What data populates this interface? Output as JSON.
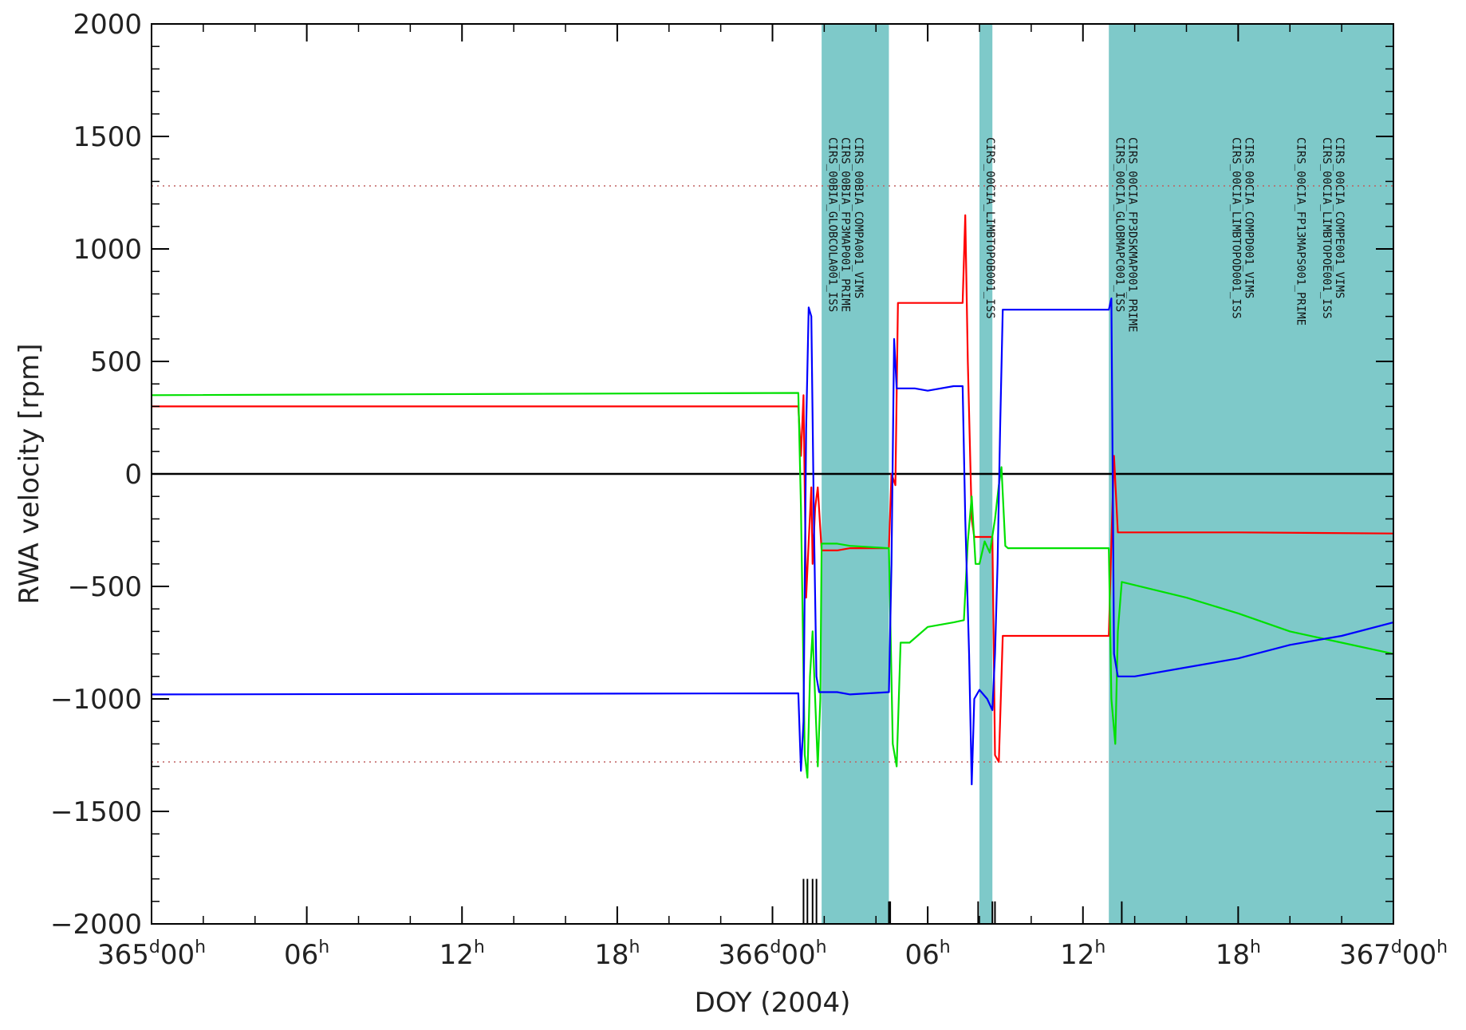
{
  "chart_data": {
    "type": "line",
    "title": "",
    "xlabel": "DOY (2004)",
    "ylabel": "RWA velocity [rpm]",
    "xlim": [
      0,
      48
    ],
    "ylim": [
      -2000,
      2000
    ],
    "x_unit": "hours since 365d00h",
    "y_ticks": [
      2000,
      1500,
      1000,
      500,
      0,
      -500,
      -1000,
      -1500,
      -2000
    ],
    "x_ticks": [
      {
        "x": 0,
        "label": "365",
        "sup1": "d",
        "mid": "00",
        "sup2": "h"
      },
      {
        "x": 6,
        "label": "",
        "sup1": "",
        "mid": "06",
        "sup2": "h"
      },
      {
        "x": 12,
        "label": "",
        "sup1": "",
        "mid": "12",
        "sup2": "h"
      },
      {
        "x": 18,
        "label": "",
        "sup1": "",
        "mid": "18",
        "sup2": "h"
      },
      {
        "x": 24,
        "label": "366",
        "sup1": "d",
        "mid": "00",
        "sup2": "h"
      },
      {
        "x": 30,
        "label": "",
        "sup1": "",
        "mid": "06",
        "sup2": "h"
      },
      {
        "x": 36,
        "label": "",
        "sup1": "",
        "mid": "12",
        "sup2": "h"
      },
      {
        "x": 42,
        "label": "",
        "sup1": "",
        "mid": "18",
        "sup2": "h"
      },
      {
        "x": 48,
        "label": "367",
        "sup1": "d",
        "mid": "00",
        "sup2": "h"
      }
    ],
    "limit_lines": [
      1280,
      -1280
    ],
    "zero_line": 0,
    "shaded_bands": [
      {
        "x0": 25.9,
        "x1": 28.5
      },
      {
        "x0": 32.0,
        "x1": 32.5
      },
      {
        "x0": 37.0,
        "x1": 48.0
      }
    ],
    "band_labels": [
      {
        "x": 26.0,
        "text": "CIRS_00BIA_GLOBCOLA001_ISS"
      },
      {
        "x": 26.5,
        "text": "CIRS_00BIA_FP3MAP001_PRIME"
      },
      {
        "x": 27.0,
        "text": "CIRS_00BIA_COMPA001_VIMS"
      },
      {
        "x": 32.1,
        "text": "CIRS_00CIA_LIMBTOPOB001_ISS"
      },
      {
        "x": 37.1,
        "text": "CIRS_00CIA_GLOBMAPC001_ISS"
      },
      {
        "x": 37.6,
        "text": "CIRS_00CIA_FP3DSKMAP001_PRIME"
      },
      {
        "x": 41.6,
        "text": "CIRS_00CIA_LIMBTOPOD001_ISS"
      },
      {
        "x": 42.1,
        "text": "CIRS_00CIA_COMPD001_VIMS"
      },
      {
        "x": 44.1,
        "text": "CIRS_00CIA_FP13MAPS001_PRIME"
      },
      {
        "x": 45.1,
        "text": "CIRS_00CIA_LIMBTOPOE001_ISS"
      },
      {
        "x": 45.6,
        "text": "CIRS_00CIA_COMPE001_VIMS"
      }
    ],
    "event_markers": [
      {
        "x": 25.2,
        "y0": -2000,
        "y1": -1800
      },
      {
        "x": 25.35,
        "y0": -2000,
        "y1": -1800
      },
      {
        "x": 25.55,
        "y0": -2000,
        "y1": -1800
      },
      {
        "x": 25.7,
        "y0": -2000,
        "y1": -1800
      },
      {
        "x": 28.5,
        "y0": -2000,
        "y1": -1900
      },
      {
        "x": 28.55,
        "y0": -2000,
        "y1": -1900
      },
      {
        "x": 31.95,
        "y0": -2000,
        "y1": -1900
      },
      {
        "x": 32.5,
        "y0": -2000,
        "y1": -1900
      },
      {
        "x": 32.6,
        "y0": -2000,
        "y1": -1900
      },
      {
        "x": 37.5,
        "y0": -2000,
        "y1": -1900
      }
    ],
    "series": [
      {
        "color": "#ff0000",
        "points": [
          [
            0,
            300
          ],
          [
            25,
            300
          ],
          [
            25.1,
            80
          ],
          [
            25.2,
            350
          ],
          [
            25.3,
            -550
          ],
          [
            25.4,
            -300
          ],
          [
            25.5,
            -60
          ],
          [
            25.55,
            -400
          ],
          [
            25.65,
            -150
          ],
          [
            25.75,
            -60
          ],
          [
            25.9,
            -340
          ],
          [
            26.5,
            -340
          ],
          [
            27.0,
            -330
          ],
          [
            28.5,
            -330
          ],
          [
            28.6,
            0
          ],
          [
            28.75,
            -50
          ],
          [
            28.85,
            760
          ],
          [
            30.0,
            760
          ],
          [
            31.1,
            760
          ],
          [
            31.35,
            760
          ],
          [
            31.45,
            1150
          ],
          [
            31.55,
            500
          ],
          [
            31.7,
            -200
          ],
          [
            31.8,
            -280
          ],
          [
            32.5,
            -280
          ],
          [
            32.6,
            -1250
          ],
          [
            32.75,
            -1280
          ],
          [
            32.9,
            -720
          ],
          [
            37.0,
            -720
          ],
          [
            37.1,
            -300
          ],
          [
            37.2,
            80
          ],
          [
            37.35,
            -260
          ],
          [
            38.0,
            -260
          ],
          [
            40.0,
            -260
          ],
          [
            42.0,
            -260
          ],
          [
            48.0,
            -265
          ]
        ]
      },
      {
        "color": "#00e000",
        "points": [
          [
            0,
            350
          ],
          [
            25,
            360
          ],
          [
            25.1,
            -150
          ],
          [
            25.25,
            -1250
          ],
          [
            25.35,
            -1350
          ],
          [
            25.45,
            -900
          ],
          [
            25.55,
            -700
          ],
          [
            25.65,
            -1000
          ],
          [
            25.75,
            -1300
          ],
          [
            25.85,
            -1000
          ],
          [
            25.9,
            -310
          ],
          [
            26.5,
            -310
          ],
          [
            27.0,
            -320
          ],
          [
            28.5,
            -330
          ],
          [
            28.65,
            -1200
          ],
          [
            28.8,
            -1300
          ],
          [
            28.95,
            -750
          ],
          [
            29.1,
            -750
          ],
          [
            29.3,
            -750
          ],
          [
            30.0,
            -680
          ],
          [
            31.0,
            -660
          ],
          [
            31.4,
            -650
          ],
          [
            31.55,
            -300
          ],
          [
            31.7,
            -100
          ],
          [
            31.85,
            -400
          ],
          [
            32.0,
            -400
          ],
          [
            32.2,
            -300
          ],
          [
            32.4,
            -350
          ],
          [
            32.6,
            -200
          ],
          [
            32.75,
            -50
          ],
          [
            32.85,
            30
          ],
          [
            33.0,
            -320
          ],
          [
            33.1,
            -330
          ],
          [
            37.0,
            -330
          ],
          [
            37.1,
            -1000
          ],
          [
            37.25,
            -1200
          ],
          [
            37.35,
            -700
          ],
          [
            37.5,
            -480
          ],
          [
            40.0,
            -550
          ],
          [
            42.0,
            -620
          ],
          [
            44.0,
            -700
          ],
          [
            46.0,
            -750
          ],
          [
            48.0,
            -800
          ]
        ]
      },
      {
        "color": "#0000ff",
        "points": [
          [
            0,
            -980
          ],
          [
            25,
            -975
          ],
          [
            25.1,
            -1320
          ],
          [
            25.2,
            -1100
          ],
          [
            25.3,
            200
          ],
          [
            25.4,
            740
          ],
          [
            25.5,
            700
          ],
          [
            25.6,
            -200
          ],
          [
            25.7,
            -900
          ],
          [
            25.8,
            -970
          ],
          [
            26.5,
            -970
          ],
          [
            27.0,
            -980
          ],
          [
            28.5,
            -970
          ],
          [
            28.6,
            -400
          ],
          [
            28.7,
            600
          ],
          [
            28.8,
            380
          ],
          [
            29.5,
            380
          ],
          [
            30.0,
            370
          ],
          [
            31.0,
            390
          ],
          [
            31.35,
            390
          ],
          [
            31.45,
            -200
          ],
          [
            31.6,
            -800
          ],
          [
            31.7,
            -1380
          ],
          [
            31.8,
            -1000
          ],
          [
            32.0,
            -960
          ],
          [
            32.3,
            -1000
          ],
          [
            32.5,
            -1050
          ],
          [
            32.6,
            -800
          ],
          [
            32.7,
            -400
          ],
          [
            32.8,
            200
          ],
          [
            32.9,
            730
          ],
          [
            34.0,
            730
          ],
          [
            37.0,
            730
          ],
          [
            37.1,
            780
          ],
          [
            37.2,
            -800
          ],
          [
            37.35,
            -900
          ],
          [
            38.0,
            -900
          ],
          [
            40.0,
            -860
          ],
          [
            42.0,
            -820
          ],
          [
            44.0,
            -760
          ],
          [
            46.0,
            -720
          ],
          [
            48.0,
            -660
          ]
        ]
      }
    ]
  }
}
